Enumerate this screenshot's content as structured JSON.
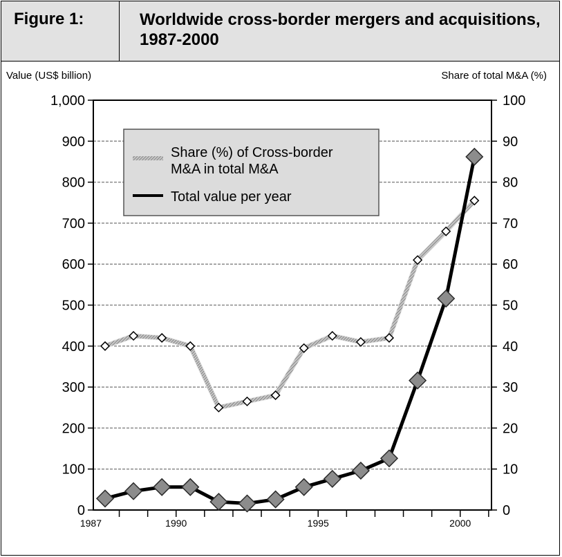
{
  "figure": {
    "label": "Figure 1:",
    "title": "Worldwide cross-border mergers and acquisitions, 1987-2000"
  },
  "chart_data": {
    "type": "line",
    "title": "Worldwide cross-border mergers and acquisitions, 1987-2000",
    "left_axis_label": "Value (US$ billion)",
    "right_axis_label": "Share of total M&A (%)",
    "ylim_left": [
      0,
      1000
    ],
    "ylim_right": [
      0,
      100
    ],
    "left_ticks": [
      "0",
      "100",
      "200",
      "300",
      "400",
      "500",
      "600",
      "700",
      "800",
      "900",
      "1,000"
    ],
    "right_ticks": [
      "0",
      "10",
      "20",
      "30",
      "40",
      "50",
      "60",
      "70",
      "80",
      "90",
      "100"
    ],
    "x_tick_labels": [
      "1987",
      "1990",
      "1995",
      "2000"
    ],
    "x": [
      1987,
      1988,
      1989,
      1990,
      1991,
      1992,
      1993,
      1994,
      1995,
      1996,
      1997,
      1998,
      1999,
      2000
    ],
    "grid": true,
    "legend_position": "top-left",
    "series": [
      {
        "name": "Share (%) of Cross-border M&A in total M&A",
        "axis": "right",
        "style": "hatched grey line, small white diamond markers",
        "color": "#9a9a9a",
        "values": [
          40,
          42.5,
          42,
          40,
          25,
          26.5,
          28,
          39.5,
          42.5,
          41,
          42,
          61,
          68,
          75.5
        ]
      },
      {
        "name": "Total value per year",
        "axis": "left",
        "style": "thick black line, large grey diamond markers",
        "color": "#000000",
        "values": [
          28,
          46,
          56,
          56,
          20,
          16,
          26,
          56,
          76,
          96,
          126,
          316,
          516,
          862
        ]
      }
    ],
    "legend": [
      "Share (%) of Cross-border",
      "M&A in total M&A",
      "Total value per year"
    ]
  }
}
